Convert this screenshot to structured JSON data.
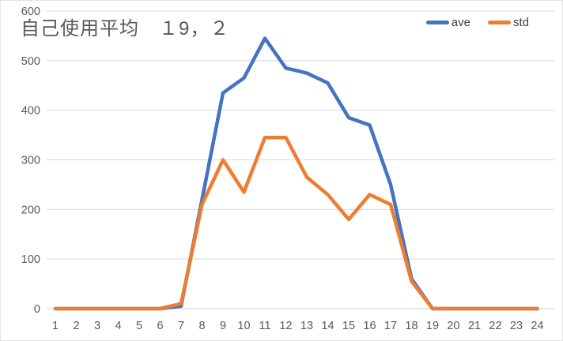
{
  "title": "自己使用平均　１9，２",
  "legend": [
    {
      "label": "ave",
      "color": "#4472C4"
    },
    {
      "label": "std",
      "color": "#ED7D31"
    }
  ],
  "colors": {
    "series_ave": "#4472C4",
    "series_std": "#ED7D31",
    "gridline": "#D9D9D9",
    "axis_line": "#CFCFCF",
    "tick_text": "#595959",
    "title_text": "#595959",
    "background": "#FFFFFF"
  },
  "chart_data": {
    "type": "line",
    "title": "自己使用平均　１9，２",
    "xlabel": "",
    "ylabel": "",
    "x": [
      1,
      2,
      3,
      4,
      5,
      6,
      7,
      8,
      9,
      10,
      11,
      12,
      13,
      14,
      15,
      16,
      17,
      18,
      19,
      20,
      21,
      22,
      23,
      24
    ],
    "series": [
      {
        "name": "ave",
        "color": "#4472C4",
        "values": [
          0,
          0,
          0,
          0,
          0,
          0,
          5,
          220,
          435,
          465,
          545,
          485,
          475,
          455,
          385,
          370,
          250,
          60,
          0,
          0,
          0,
          0,
          0,
          0
        ]
      },
      {
        "name": "std",
        "color": "#ED7D31",
        "values": [
          0,
          0,
          0,
          0,
          0,
          0,
          10,
          210,
          300,
          235,
          345,
          345,
          265,
          230,
          180,
          230,
          210,
          55,
          0,
          0,
          0,
          0,
          0,
          0
        ]
      }
    ],
    "ylim": [
      0,
      600
    ],
    "yticks": [
      0,
      100,
      200,
      300,
      400,
      500,
      600
    ],
    "grid": true,
    "legend_position": "top-right"
  }
}
